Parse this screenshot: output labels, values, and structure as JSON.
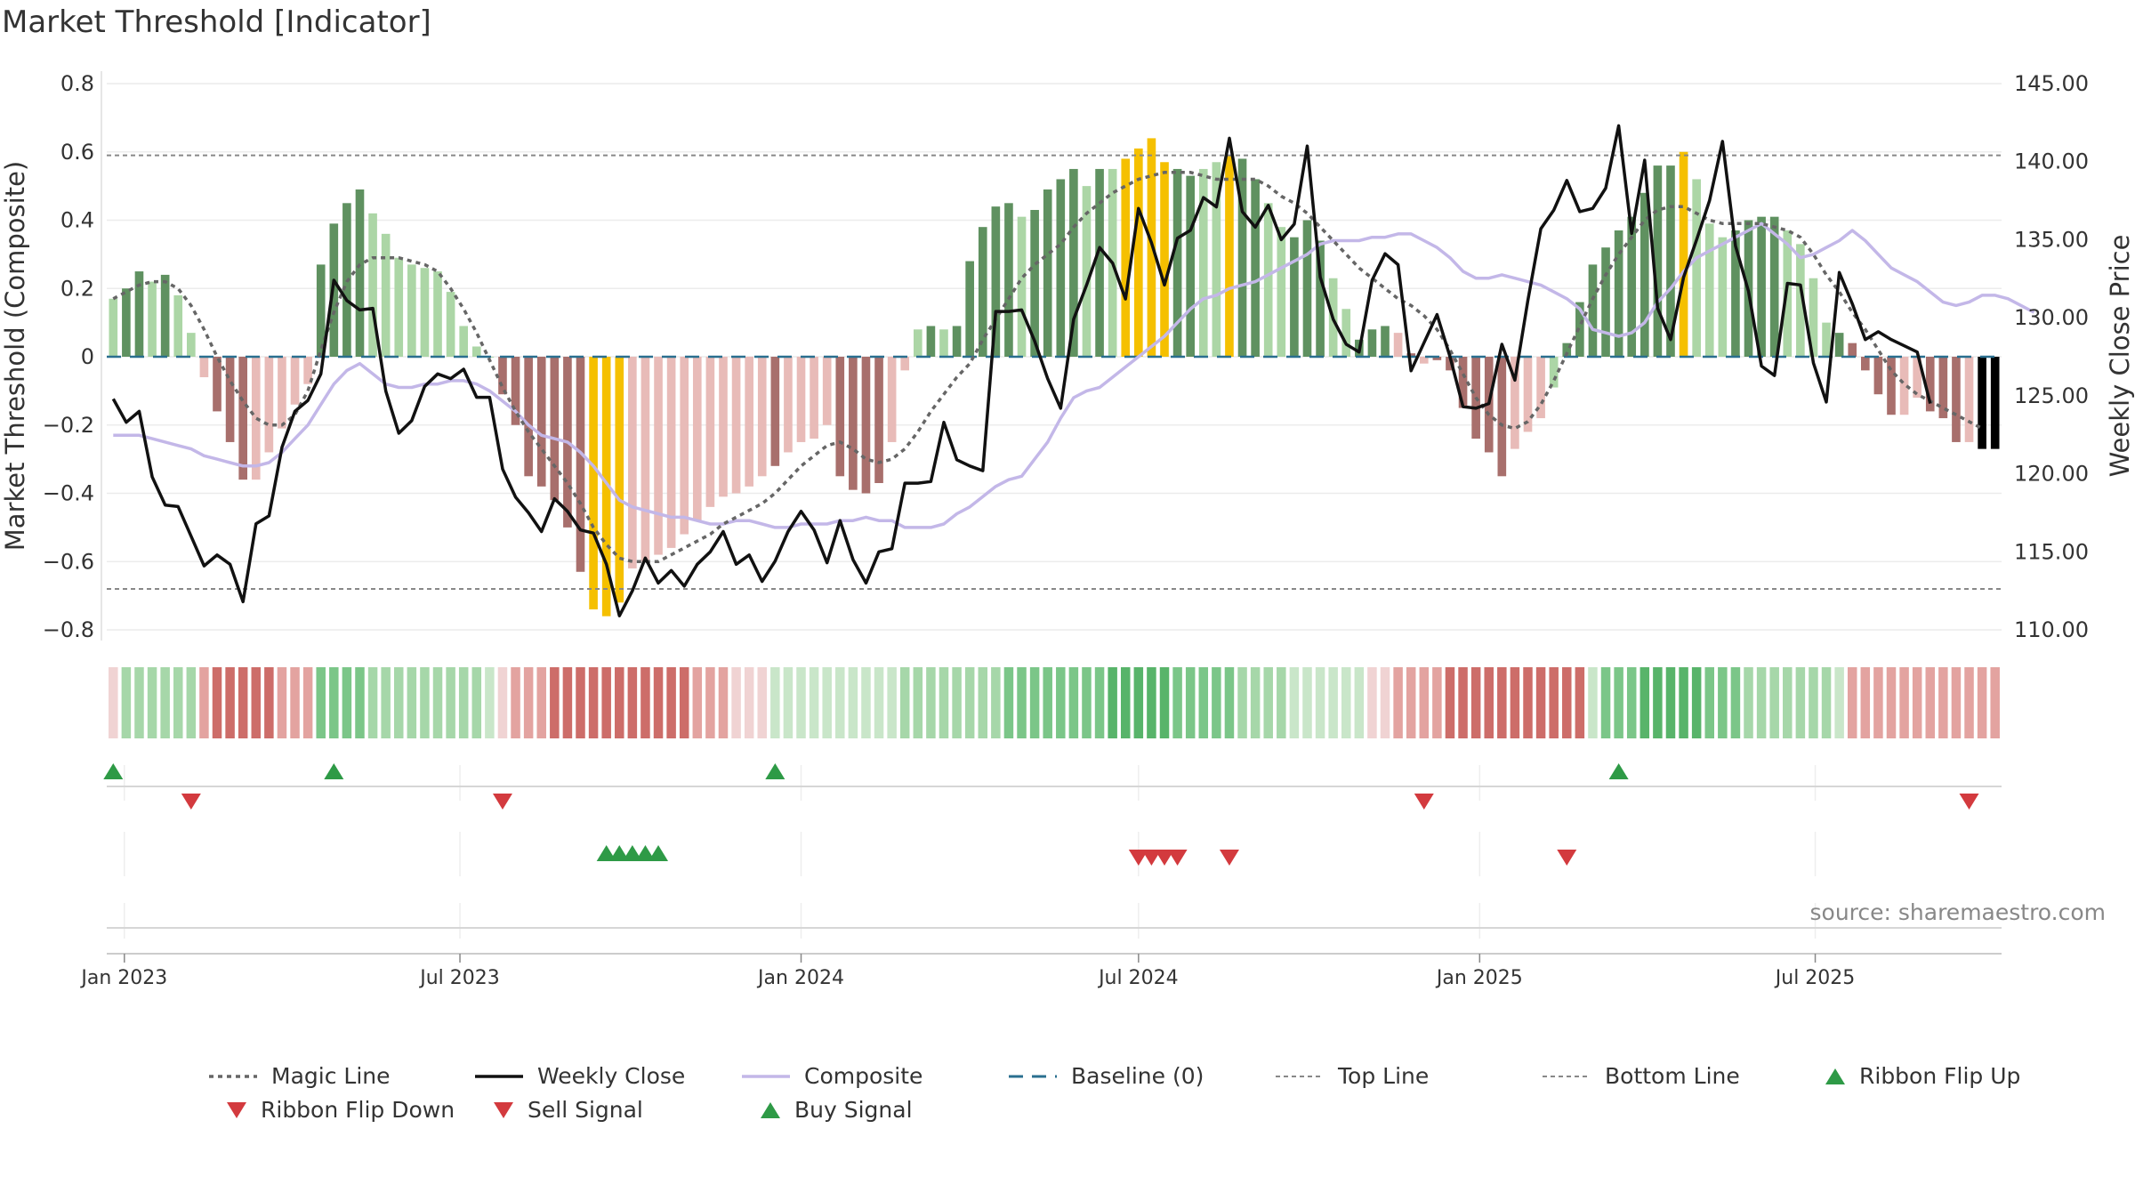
{
  "chart_data": {
    "type": "bar+line",
    "title": "Market Threshold [Indicator]",
    "ylabel_left": "Market Threshold (Composite)",
    "ylabel_right": "Weekly Close Price",
    "ylim_left": [
      -0.8,
      0.8
    ],
    "ylim_right": [
      110,
      145
    ],
    "yticks_left": [
      "0.8",
      "0.6",
      "0.4",
      "0.2",
      "0",
      "−0.2",
      "−0.4",
      "−0.6",
      "−0.8"
    ],
    "yticks_right": [
      "145.00",
      "140.00",
      "135.00",
      "130.00",
      "125.00",
      "120.00",
      "115.00",
      "110.00"
    ],
    "top_line": 0.59,
    "bottom_line": -0.68,
    "baseline": 0,
    "x_start": "2022-12-26",
    "x_step_days": 7,
    "xticks": [
      {
        "label": "Jan 2023",
        "date": "2023-01-01"
      },
      {
        "label": "Jul 2023",
        "date": "2023-07-01"
      },
      {
        "label": "Jan 2024",
        "date": "2024-01-01"
      },
      {
        "label": "Jul 2024",
        "date": "2024-07-01"
      },
      {
        "label": "Jan 2025",
        "date": "2025-01-01"
      },
      {
        "label": "Jul 2025",
        "date": "2025-07-01"
      }
    ],
    "bars": [
      0.17,
      0.2,
      0.25,
      0.22,
      0.24,
      0.18,
      0.07,
      -0.06,
      -0.16,
      -0.25,
      -0.36,
      -0.36,
      -0.28,
      -0.21,
      -0.14,
      -0.08,
      0.27,
      0.39,
      0.45,
      0.49,
      0.42,
      0.36,
      0.29,
      0.27,
      0.26,
      0.25,
      0.19,
      0.09,
      0.03,
      0,
      -0.11,
      -0.2,
      -0.35,
      -0.38,
      -0.42,
      -0.5,
      -0.63,
      -0.74,
      -0.76,
      -0.72,
      -0.62,
      -0.6,
      -0.58,
      -0.56,
      -0.52,
      -0.48,
      -0.44,
      -0.41,
      -0.4,
      -0.38,
      -0.35,
      -0.32,
      -0.28,
      -0.25,
      -0.24,
      -0.2,
      -0.35,
      -0.39,
      -0.4,
      -0.37,
      -0.25,
      -0.04,
      0.08,
      0.09,
      0.08,
      0.09,
      0.28,
      0.38,
      0.44,
      0.45,
      0.41,
      0.43,
      0.49,
      0.52,
      0.55,
      0.5,
      0.55,
      0.55,
      0.58,
      0.61,
      0.64,
      0.57,
      0.55,
      0.53,
      0.55,
      0.57,
      0.59,
      0.58,
      0.52,
      0.45,
      0.38,
      0.35,
      0.4,
      0.34,
      0.23,
      0.14,
      0.05,
      0.08,
      0.09,
      0.07,
      0.01,
      -0.02,
      -0.01,
      -0.04,
      -0.15,
      -0.24,
      -0.28,
      -0.35,
      -0.27,
      -0.22,
      -0.18,
      -0.09,
      0.04,
      0.16,
      0.27,
      0.32,
      0.37,
      0.41,
      0.48,
      0.56,
      0.56,
      0.6,
      0.52,
      0.39,
      0.35,
      0.37,
      0.4,
      0.41,
      0.41,
      0.37,
      0.33,
      0.23,
      0.1,
      0.07,
      0.04,
      -0.04,
      -0.11,
      -0.17,
      -0.17,
      -0.12,
      -0.16,
      -0.18,
      -0.25,
      -0.25,
      -0.27,
      -0.27
    ],
    "bar_colors": [
      "#acd6a6",
      "#5f9160",
      "#5f9160",
      "#acd6a6",
      "#5f9160",
      "#acd6a6",
      "#acd6a6",
      "#e8bbb8",
      "#a86f6c",
      "#a86f6c",
      "#a86f6c",
      "#e8bbb8",
      "#e8bbb8",
      "#e8bbb8",
      "#e8bbb8",
      "#e8bbb8",
      "#5f9160",
      "#5f9160",
      "#5f9160",
      "#5f9160",
      "#acd6a6",
      "#acd6a6",
      "#acd6a6",
      "#acd6a6",
      "#acd6a6",
      "#acd6a6",
      "#acd6a6",
      "#acd6a6",
      "#acd6a6",
      "#acd6a6",
      "#a86f6c",
      "#a86f6c",
      "#a86f6c",
      "#a86f6c",
      "#a86f6c",
      "#a86f6c",
      "#a86f6c",
      "#f5c000",
      "#f5c000",
      "#f5c000",
      "#e8bbb8",
      "#e8bbb8",
      "#e8bbb8",
      "#e8bbb8",
      "#e8bbb8",
      "#e8bbb8",
      "#e8bbb8",
      "#e8bbb8",
      "#e8bbb8",
      "#e8bbb8",
      "#e8bbb8",
      "#a86f6c",
      "#e8bbb8",
      "#e8bbb8",
      "#e8bbb8",
      "#e8bbb8",
      "#a86f6c",
      "#a86f6c",
      "#a86f6c",
      "#a86f6c",
      "#e8bbb8",
      "#e8bbb8",
      "#acd6a6",
      "#5f9160",
      "#acd6a6",
      "#5f9160",
      "#5f9160",
      "#5f9160",
      "#5f9160",
      "#5f9160",
      "#acd6a6",
      "#5f9160",
      "#5f9160",
      "#5f9160",
      "#5f9160",
      "#acd6a6",
      "#5f9160",
      "#acd6a6",
      "#f5c000",
      "#f5c000",
      "#f5c000",
      "#f5c000",
      "#5f9160",
      "#5f9160",
      "#acd6a6",
      "#acd6a6",
      "#f5c000",
      "#5f9160",
      "#5f9160",
      "#acd6a6",
      "#acd6a6",
      "#5f9160",
      "#5f9160",
      "#5f9160",
      "#acd6a6",
      "#acd6a6",
      "#5f9160",
      "#5f9160",
      "#5f9160",
      "#e8bbb8",
      "#a86f6c",
      "#e8bbb8",
      "#a86f6c",
      "#a86f6c",
      "#a86f6c",
      "#a86f6c",
      "#a86f6c",
      "#a86f6c",
      "#e8bbb8",
      "#e8bbb8",
      "#e8bbb8",
      "#acd6a6",
      "#5f9160",
      "#5f9160",
      "#5f9160",
      "#5f9160",
      "#5f9160",
      "#5f9160",
      "#5f9160",
      "#5f9160",
      "#5f9160",
      "#f5c000",
      "#acd6a6",
      "#acd6a6",
      "#acd6a6",
      "#5f9160",
      "#5f9160",
      "#5f9160",
      "#5f9160",
      "#acd6a6",
      "#acd6a6",
      "#acd6a6",
      "#acd6a6",
      "#5f9160",
      "#a86f6c",
      "#a86f6c",
      "#a86f6c",
      "#a86f6c",
      "#e8bbb8",
      "#e8bbb8",
      "#a86f6c",
      "#a86f6c",
      "#a86f6c",
      "#e8bbb8"
    ],
    "series": [
      {
        "name": "Weekly Close",
        "axis": "right",
        "color": "#111111",
        "values": [
          124.8,
          123.3,
          124,
          119.8,
          118,
          117.9,
          116,
          114.1,
          114.8,
          114.2,
          111.8,
          116.8,
          117.3,
          121.7,
          124,
          124.7,
          126.4,
          132.4,
          131.1,
          130.5,
          130.6,
          125.3,
          122.6,
          123.4,
          125.6,
          126.4,
          126.1,
          126.7,
          124.9,
          124.9,
          120.3,
          118.5,
          117.5,
          116.3,
          118.4,
          117.6,
          116.4,
          116.2,
          114.2,
          110.9,
          112.5,
          114.6,
          113,
          113.8,
          112.8,
          114.2,
          115,
          116.3,
          114.2,
          114.8,
          113.1,
          114.4,
          116.3,
          117.6,
          116.4,
          114.3,
          117,
          114.5,
          113,
          115,
          115.2,
          119.4,
          119.4,
          119.5,
          123.3,
          120.9,
          120.5,
          120.2,
          130.4,
          130.4,
          130.5,
          128.5,
          126.1,
          124.2,
          129.9,
          132.1,
          134.5,
          133.5,
          131.2,
          137,
          134.8,
          132.1,
          135.1,
          135.6,
          137.7,
          137.1,
          141.5,
          136.8,
          135.8,
          137.2,
          135,
          136,
          141,
          132.6,
          129.9,
          128.3,
          127.8,
          132.4,
          134.1,
          133.4,
          126.6,
          128.4,
          130.2,
          127.5,
          124.3,
          124.2,
          124.5,
          128.3,
          126,
          131.1,
          135.7,
          136.9,
          138.8,
          136.8,
          137,
          138.3,
          142.3,
          135.4,
          140.1,
          130.6,
          128.6,
          132.6,
          135,
          137.5,
          141.3,
          134.6,
          131.7,
          126.9,
          126.3,
          132.2,
          132.1,
          127.1,
          124.6,
          132.9,
          130.9,
          128.6,
          129.1,
          128.6,
          128.2,
          127.8,
          124.5
        ]
      },
      {
        "name": "Magic Line",
        "axis": "left",
        "color": "#666666",
        "values": [
          0.17,
          0.19,
          0.21,
          0.22,
          0.22,
          0.2,
          0.15,
          0.08,
          0.0,
          -0.07,
          -0.13,
          -0.18,
          -0.2,
          -0.2,
          -0.17,
          -0.1,
          0.02,
          0.13,
          0.22,
          0.27,
          0.29,
          0.29,
          0.29,
          0.28,
          0.27,
          0.25,
          0.2,
          0.14,
          0.07,
          -0.01,
          -0.09,
          -0.16,
          -0.22,
          -0.27,
          -0.32,
          -0.37,
          -0.43,
          -0.5,
          -0.55,
          -0.59,
          -0.6,
          -0.6,
          -0.6,
          -0.58,
          -0.56,
          -0.54,
          -0.52,
          -0.49,
          -0.47,
          -0.45,
          -0.43,
          -0.4,
          -0.36,
          -0.32,
          -0.29,
          -0.26,
          -0.25,
          -0.27,
          -0.3,
          -0.31,
          -0.3,
          -0.27,
          -0.22,
          -0.16,
          -0.11,
          -0.06,
          -0.02,
          0.05,
          0.11,
          0.17,
          0.23,
          0.27,
          0.3,
          0.33,
          0.38,
          0.42,
          0.45,
          0.48,
          0.5,
          0.52,
          0.53,
          0.54,
          0.54,
          0.54,
          0.53,
          0.52,
          0.52,
          0.52,
          0.52,
          0.5,
          0.47,
          0.45,
          0.42,
          0.38,
          0.34,
          0.3,
          0.26,
          0.23,
          0.2,
          0.17,
          0.15,
          0.12,
          0.08,
          0.02,
          -0.05,
          -0.12,
          -0.17,
          -0.2,
          -0.21,
          -0.19,
          -0.14,
          -0.07,
          0.01,
          0.09,
          0.17,
          0.24,
          0.3,
          0.35,
          0.4,
          0.43,
          0.44,
          0.44,
          0.42,
          0.4,
          0.39,
          0.39,
          0.39,
          0.39,
          0.38,
          0.37,
          0.35,
          0.3,
          0.24,
          0.19,
          0.13,
          0.08,
          0.02,
          -0.04,
          -0.08,
          -0.11,
          -0.13,
          -0.15,
          -0.17,
          -0.19,
          -0.21
        ]
      },
      {
        "name": "Composite",
        "axis": "left",
        "color": "#c3b7e8",
        "values": [
          -0.23,
          -0.23,
          -0.23,
          -0.24,
          -0.25,
          -0.26,
          -0.27,
          -0.29,
          -0.3,
          -0.31,
          -0.32,
          -0.32,
          -0.31,
          -0.28,
          -0.24,
          -0.2,
          -0.14,
          -0.08,
          -0.04,
          -0.02,
          -0.05,
          -0.08,
          -0.09,
          -0.09,
          -0.08,
          -0.08,
          -0.07,
          -0.07,
          -0.08,
          -0.1,
          -0.13,
          -0.16,
          -0.2,
          -0.23,
          -0.24,
          -0.25,
          -0.28,
          -0.32,
          -0.37,
          -0.42,
          -0.44,
          -0.45,
          -0.46,
          -0.47,
          -0.47,
          -0.48,
          -0.49,
          -0.49,
          -0.48,
          -0.48,
          -0.49,
          -0.5,
          -0.5,
          -0.49,
          -0.49,
          -0.49,
          -0.48,
          -0.48,
          -0.47,
          -0.48,
          -0.48,
          -0.5,
          -0.5,
          -0.5,
          -0.49,
          -0.46,
          -0.44,
          -0.41,
          -0.38,
          -0.36,
          -0.35,
          -0.3,
          -0.25,
          -0.18,
          -0.12,
          -0.1,
          -0.09,
          -0.06,
          -0.03,
          0.0,
          0.03,
          0.06,
          0.1,
          0.14,
          0.17,
          0.18,
          0.2,
          0.21,
          0.22,
          0.24,
          0.26,
          0.28,
          0.3,
          0.33,
          0.34,
          0.34,
          0.34,
          0.35,
          0.35,
          0.36,
          0.36,
          0.34,
          0.32,
          0.29,
          0.25,
          0.23,
          0.23,
          0.24,
          0.23,
          0.22,
          0.21,
          0.19,
          0.17,
          0.14,
          0.08,
          0.07,
          0.06,
          0.07,
          0.1,
          0.16,
          0.2,
          0.25,
          0.29,
          0.31,
          0.33,
          0.35,
          0.37,
          0.39,
          0.36,
          0.33,
          0.29,
          0.3,
          0.32,
          0.34,
          0.37,
          0.34,
          0.3,
          0.26,
          0.24,
          0.22,
          0.19,
          0.16,
          0.15,
          0.16,
          0.18,
          0.18,
          0.17,
          0.15,
          0.13
        ]
      }
    ],
    "ribbon_colors": [
      "#f0d3d3",
      "#a6d7a9",
      "#a6d7a9",
      "#a6d7a9",
      "#a6d7a9",
      "#a6d7a9",
      "#a6d7a9",
      "#e3a3a0",
      "#cd6d69",
      "#cd6d69",
      "#cd6d69",
      "#cd6d69",
      "#cd6d69",
      "#e3a3a0",
      "#e3a3a0",
      "#e3a3a0",
      "#7bc688",
      "#7bc688",
      "#7bc688",
      "#7bc688",
      "#a6d7a9",
      "#a6d7a9",
      "#a6d7a9",
      "#a6d7a9",
      "#a6d7a9",
      "#a6d7a9",
      "#a6d7a9",
      "#a6d7a9",
      "#a6d7a9",
      "#c9e6c9",
      "#f0d3d3",
      "#e3a3a0",
      "#e3a3a0",
      "#e3a3a0",
      "#cd6d69",
      "#cd6d69",
      "#cd6d69",
      "#cd6d69",
      "#cd6d69",
      "#cd6d69",
      "#cd6d69",
      "#cd6d69",
      "#cd6d69",
      "#cd6d69",
      "#cd6d69",
      "#e3a3a0",
      "#e3a3a0",
      "#e3a3a0",
      "#f0d3d3",
      "#f0d3d3",
      "#f0d3d3",
      "#c9e6c9",
      "#c9e6c9",
      "#c9e6c9",
      "#c9e6c9",
      "#c9e6c9",
      "#c9e6c9",
      "#c9e6c9",
      "#c9e6c9",
      "#c9e6c9",
      "#c9e6c9",
      "#a6d7a9",
      "#a6d7a9",
      "#a6d7a9",
      "#a6d7a9",
      "#a6d7a9",
      "#a6d7a9",
      "#a6d7a9",
      "#a6d7a9",
      "#7bc688",
      "#7bc688",
      "#7bc688",
      "#7bc688",
      "#7bc688",
      "#7bc688",
      "#7bc688",
      "#7bc688",
      "#58b46a",
      "#58b46a",
      "#58b46a",
      "#58b46a",
      "#58b46a",
      "#7bc688",
      "#7bc688",
      "#7bc688",
      "#7bc688",
      "#7bc688",
      "#a6d7a9",
      "#a6d7a9",
      "#a6d7a9",
      "#a6d7a9",
      "#c9e6c9",
      "#c9e6c9",
      "#c9e6c9",
      "#c9e6c9",
      "#c9e6c9",
      "#c9e6c9",
      "#f0d3d3",
      "#f0d3d3",
      "#e3a3a0",
      "#e3a3a0",
      "#e3a3a0",
      "#e3a3a0",
      "#cd6d69",
      "#cd6d69",
      "#cd6d69",
      "#cd6d69",
      "#cd6d69",
      "#cd6d69",
      "#cd6d69",
      "#cd6d69",
      "#cd6d69",
      "#cd6d69",
      "#cd6d69",
      "#c9e6c9",
      "#7bc688",
      "#7bc688",
      "#7bc688",
      "#58b46a",
      "#58b46a",
      "#58b46a",
      "#58b46a",
      "#58b46a",
      "#7bc688",
      "#7bc688",
      "#7bc688",
      "#a6d7a9",
      "#a6d7a9",
      "#a6d7a9",
      "#a6d7a9",
      "#a6d7a9",
      "#a6d7a9",
      "#a6d7a9",
      "#c9e6c9",
      "#e3a3a0",
      "#e3a3a0",
      "#e3a3a0",
      "#e3a3a0",
      "#e3a3a0",
      "#e3a3a0",
      "#e3a3a0",
      "#e3a3a0",
      "#e3a3a0",
      "#e3a3a0",
      "#e3a3a0",
      "#e3a3a0"
    ],
    "ribbon_flip_up": [
      0,
      17,
      51,
      116
    ],
    "ribbon_flip_down": [
      6,
      30,
      101,
      143
    ],
    "buy_signal": [
      38,
      39,
      40,
      41,
      42
    ],
    "sell_signal": [
      79,
      80,
      81,
      82,
      86,
      112
    ],
    "legend": [
      {
        "key": "magic",
        "label": "Magic Line"
      },
      {
        "key": "close",
        "label": "Weekly Close"
      },
      {
        "key": "composite",
        "label": "Composite"
      },
      {
        "key": "baseline",
        "label": "Baseline (0)"
      },
      {
        "key": "top",
        "label": "Top Line"
      },
      {
        "key": "bottom",
        "label": "Bottom Line"
      },
      {
        "key": "flipup",
        "label": "Ribbon Flip Up"
      },
      {
        "key": "flipdown",
        "label": "Ribbon Flip Down"
      },
      {
        "key": "sell",
        "label": "Sell Signal"
      },
      {
        "key": "buy",
        "label": "Buy Signal"
      }
    ],
    "source": "source: sharemaestro.com"
  },
  "colors": {
    "up_marker": "#2e9a46",
    "down_marker": "#d33a3e",
    "baseline": "#2a6f8f",
    "ref_line": "#888888",
    "highlight": "#f5c000"
  }
}
